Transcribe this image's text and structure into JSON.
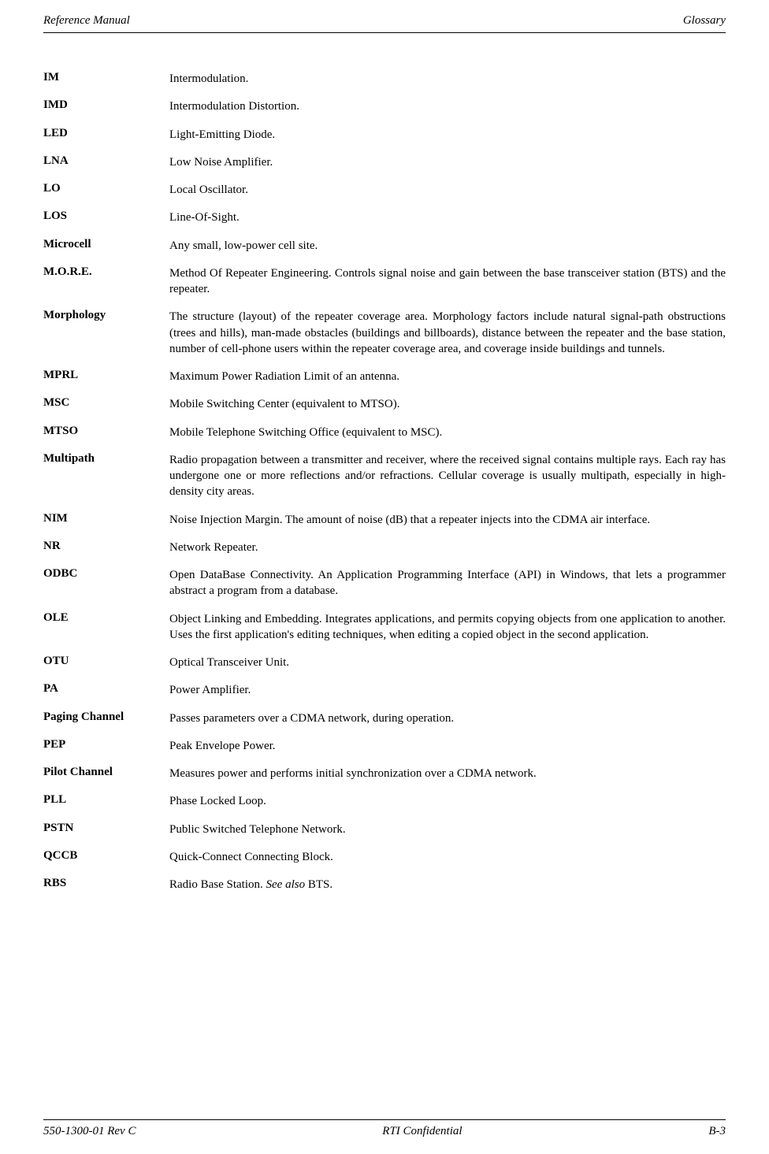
{
  "header": {
    "left": "Reference Manual",
    "right": "Glossary"
  },
  "footer": {
    "left": "550-1300-01 Rev C",
    "center": "RTI Confidential",
    "right": "B-3"
  },
  "entries": [
    {
      "term": "IM",
      "def": "Intermodulation."
    },
    {
      "term": "IMD",
      "def": "Intermodulation Distortion."
    },
    {
      "term": "LED",
      "def": "Light-Emitting Diode."
    },
    {
      "term": "LNA",
      "def": "Low Noise Amplifier."
    },
    {
      "term": "LO",
      "def": "Local Oscillator."
    },
    {
      "term": "LOS",
      "def": "Line-Of-Sight."
    },
    {
      "term": "Microcell",
      "def": "Any small, low-power cell site."
    },
    {
      "term": "M.O.R.E.",
      "def": "Method Of Repeater Engineering. Controls signal noise and gain between the base transceiver station (BTS) and the repeater."
    },
    {
      "term": "Morphology",
      "def": "The structure (layout) of the repeater coverage area. Morphology factors include natural signal-path obstructions (trees and hills), man-made obstacles (buildings and billboards), distance between the repeater and the base station, number of cell-phone users within the repeater coverage area, and coverage inside buildings and tunnels."
    },
    {
      "term": "MPRL",
      "def": "Maximum Power Radiation Limit of an antenna."
    },
    {
      "term": "MSC",
      "def": "Mobile Switching Center (equivalent to MTSO)."
    },
    {
      "term": "MTSO",
      "def": "Mobile Telephone Switching Office (equivalent to MSC)."
    },
    {
      "term": "Multipath",
      "def": "Radio propagation between a transmitter and receiver, where the received signal contains multiple rays. Each ray has undergone one or more reflections and/or refractions. Cellular coverage is usually multipath, especially in high-density city areas."
    },
    {
      "term": "NIM",
      "def": "Noise Injection Margin. The amount of noise (dB) that a repeater injects into the CDMA air interface."
    },
    {
      "term": "NR",
      "def": "Network Repeater."
    },
    {
      "term": "ODBC",
      "def": "Open DataBase Connectivity. An Application Programming Interface (API) in Windows, that lets a programmer abstract a program from a database."
    },
    {
      "term": "OLE",
      "def": "Object Linking and Embedding. Integrates applications, and permits copying objects from one application to another. Uses the first application's editing techniques, when editing a copied object in the second application."
    },
    {
      "term": "OTU",
      "def": "Optical Transceiver Unit."
    },
    {
      "term": "PA",
      "def": "Power Amplifier."
    },
    {
      "term": "Paging Channel",
      "def": "Passes parameters over a CDMA network, during operation."
    },
    {
      "term": "PEP",
      "def": "Peak Envelope Power."
    },
    {
      "term": "Pilot Channel",
      "def": "Measures power and performs initial synchronization over a CDMA network."
    },
    {
      "term": "PLL",
      "def": "Phase Locked Loop."
    },
    {
      "term": "PSTN",
      "def": "Public Switched Telephone Network."
    },
    {
      "term": "QCCB",
      "def": "Quick-Connect Connecting Block."
    },
    {
      "term": "RBS",
      "def_html": "Radio Base Station. <em>See also</em> BTS."
    }
  ]
}
